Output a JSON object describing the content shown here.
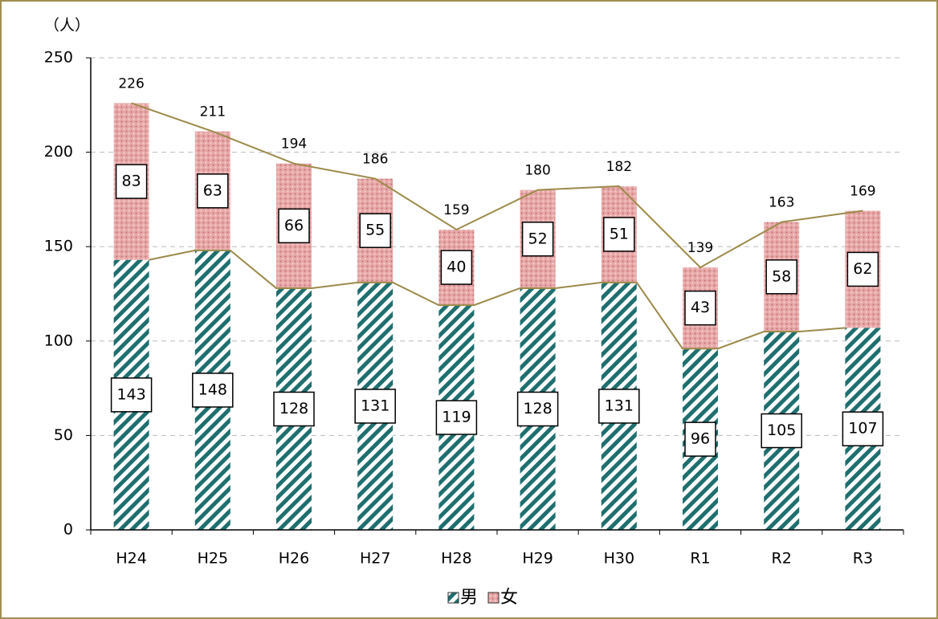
{
  "chart_data": {
    "type": "stacked-bar",
    "y_label": "（人）",
    "categories": [
      "H24",
      "H25",
      "H26",
      "H27",
      "H28",
      "H29",
      "H30",
      "R1",
      "R2",
      "R3"
    ],
    "series": [
      {
        "name": "男",
        "color": "#1f6f6f",
        "values": [
          143,
          148,
          128,
          131,
          119,
          128,
          131,
          96,
          105,
          107
        ]
      },
      {
        "name": "女",
        "color": "#d98c8c",
        "values": [
          83,
          63,
          66,
          55,
          40,
          52,
          51,
          43,
          58,
          62
        ]
      }
    ],
    "totals": [
      226,
      211,
      194,
      186,
      159,
      180,
      182,
      139,
      163,
      169
    ],
    "line_color": "#9c8a4a",
    "ylim": [
      0,
      250
    ],
    "yticks": [
      0,
      50,
      100,
      150,
      200,
      250
    ],
    "grid": true
  }
}
